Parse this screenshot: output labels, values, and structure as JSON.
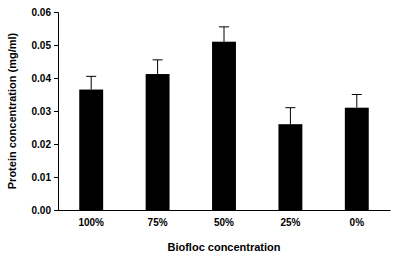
{
  "chart_data": {
    "type": "bar",
    "x_label": "Biofloc concentration",
    "y_label": "Protein concentration (mg/ml)",
    "categories": [
      "100%",
      "75%",
      "50%",
      "25%",
      "0%"
    ],
    "values": [
      0.0365,
      0.0412,
      0.051,
      0.026,
      0.031
    ],
    "errors": [
      0.004,
      0.0043,
      0.0045,
      0.005,
      0.004
    ],
    "color": "#000000",
    "ylim": [
      0,
      0.06
    ],
    "yticks": [
      {
        "value": 0,
        "label": "0.00"
      },
      0.01,
      0.02,
      0.03,
      0.04,
      0.05,
      0.06
    ],
    "grid": false
  }
}
